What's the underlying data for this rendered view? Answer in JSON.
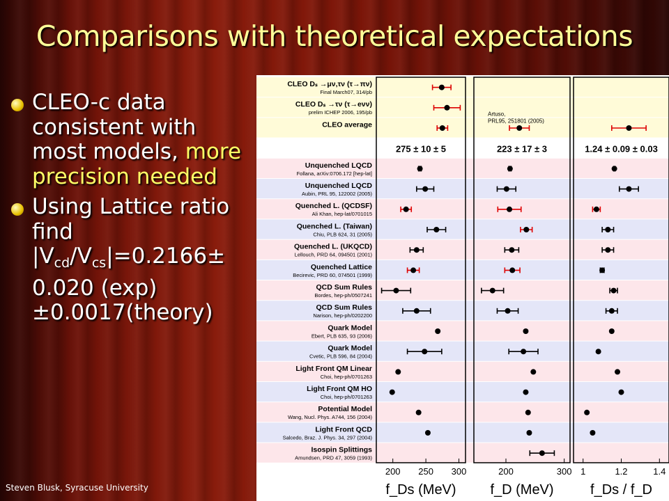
{
  "slide": {
    "title": "Comparisons with theoretical expectations",
    "footer": "Steven Blusk, Syracuse University",
    "bullets": [
      {
        "parts": [
          "CLEO-c data consistent with most models, ",
          "more precision needed"
        ]
      },
      {
        "text": "Using Lattice ratio find |V",
        "sub1": "cd",
        "mid": "/V",
        "sub2": "cs",
        "tail": "|=0.2166± 0.020 (exp) ±0.0017(theory)"
      }
    ]
  },
  "chart_data": {
    "type": "scatter",
    "rows": [
      {
        "name": "CLEO Dₛ →μν,τν (τ→πν)",
        "ref": "Final March07, 314/pb",
        "group": "cleo"
      },
      {
        "name": "CLEO Dₛ →τν (τ→eνν)",
        "ref": "prelim ICHEP 2006, 195/pb",
        "group": "cleo"
      },
      {
        "name": "CLEO average",
        "ref": "",
        "group": "cleo"
      },
      {
        "name": "",
        "ref": "",
        "group": "summary"
      },
      {
        "name": "Unquenched LQCD",
        "ref": "Follana, arXiv:0706.172 [hep-lat]",
        "group": "a"
      },
      {
        "name": "Unquenched LQCD",
        "ref": "Aubin, PRL 95, 122002 (2005)",
        "group": "b"
      },
      {
        "name": "Quenched L. (QCDSF)",
        "ref": "Ali Khan, hep-lat/0701015",
        "group": "a"
      },
      {
        "name": "Quenched L. (Taiwan)",
        "ref": "Chiu, PLB 624, 31 (2005)",
        "group": "b"
      },
      {
        "name": "Quenched L. (UKQCD)",
        "ref": "Lellouch, PRD 64, 094501 (2001)",
        "group": "a"
      },
      {
        "name": "Quenched Lattice",
        "ref": "Becirevic, PRD 60, 074501 (1999)",
        "group": "b"
      },
      {
        "name": "QCD Sum Rules",
        "ref": "Bordes, hep-ph/0507241",
        "group": "a"
      },
      {
        "name": "QCD Sum Rules",
        "ref": "Narison, hep-ph/0202200",
        "group": "b"
      },
      {
        "name": "Quark Model",
        "ref": "Ebert, PLB 635, 93 (2006)",
        "group": "a"
      },
      {
        "name": "Quark Model",
        "ref": "Cvetic, PLB 596, 84 (2004)",
        "group": "b"
      },
      {
        "name": "Light Front QM Linear",
        "ref": "Choi, hep-ph/0701263",
        "group": "a"
      },
      {
        "name": "Light Front QM HO",
        "ref": "Choi, hep-ph/0701263",
        "group": "b"
      },
      {
        "name": "Potential Model",
        "ref": "Wang, Nucl. Phys. A744, 156 (2004)",
        "group": "a"
      },
      {
        "name": "Light Front QCD",
        "ref": "Salcedo, Braz. J. Phys. 34, 297 (2004)",
        "group": "b"
      },
      {
        "name": "Isospin Splittings",
        "ref": "Amundsen, PRD 47, 3059 (1993)",
        "group": "a"
      }
    ],
    "panels": [
      {
        "xlabel": "f_Ds (MeV)",
        "xlim": [
          175,
          310
        ],
        "ticks": [
          200,
          250,
          300
        ],
        "summary": "275 ± 10 ± 5",
        "points": [
          {
            "row": 0,
            "v": 274,
            "lo": 260,
            "hi": 288,
            "red": true
          },
          {
            "row": 1,
            "v": 282,
            "lo": 262,
            "hi": 302,
            "red": true
          },
          {
            "row": 2,
            "v": 275,
            "lo": 267,
            "hi": 283,
            "red": true
          },
          {
            "row": 4,
            "v": 241,
            "lo": 239,
            "hi": 243
          },
          {
            "row": 5,
            "v": 249,
            "lo": 236,
            "hi": 262
          },
          {
            "row": 6,
            "v": 220,
            "lo": 212,
            "hi": 228,
            "red": true
          },
          {
            "row": 7,
            "v": 266,
            "lo": 252,
            "hi": 280
          },
          {
            "row": 8,
            "v": 236,
            "lo": 226,
            "hi": 246
          },
          {
            "row": 9,
            "v": 231,
            "lo": 222,
            "hi": 240,
            "red": true
          },
          {
            "row": 10,
            "v": 205,
            "lo": 183,
            "hi": 227
          },
          {
            "row": 11,
            "v": 236,
            "lo": 215,
            "hi": 257
          },
          {
            "row": 12,
            "v": 268,
            "lo": 268,
            "hi": 268
          },
          {
            "row": 13,
            "v": 248,
            "lo": 222,
            "hi": 274
          },
          {
            "row": 14,
            "v": 208,
            "lo": 208,
            "hi": 208
          },
          {
            "row": 15,
            "v": 199,
            "lo": 199,
            "hi": 199
          },
          {
            "row": 16,
            "v": 239,
            "lo": 239,
            "hi": 239
          },
          {
            "row": 17,
            "v": 253,
            "lo": 253,
            "hi": 253
          }
        ]
      },
      {
        "xlabel": "f_D (MeV)",
        "xlim": [
          145,
          310
        ],
        "ticks": [
          200,
          300
        ],
        "summary": "223 ± 17 ± 3",
        "note": "Artuso, PRL95, 251801 (2005)",
        "points": [
          {
            "row": 2,
            "v": 223,
            "lo": 206,
            "hi": 240,
            "red": true
          },
          {
            "row": 4,
            "v": 207,
            "lo": 205,
            "hi": 209
          },
          {
            "row": 5,
            "v": 201,
            "lo": 185,
            "hi": 217
          },
          {
            "row": 6,
            "v": 206,
            "lo": 186,
            "hi": 226,
            "red": true
          },
          {
            "row": 7,
            "v": 235,
            "lo": 225,
            "hi": 245,
            "red": true
          },
          {
            "row": 8,
            "v": 210,
            "lo": 198,
            "hi": 222
          },
          {
            "row": 9,
            "v": 211,
            "lo": 198,
            "hi": 224,
            "red": true
          },
          {
            "row": 10,
            "v": 177,
            "lo": 158,
            "hi": 196
          },
          {
            "row": 11,
            "v": 203,
            "lo": 185,
            "hi": 221
          },
          {
            "row": 12,
            "v": 234,
            "lo": 234,
            "hi": 234
          },
          {
            "row": 13,
            "v": 230,
            "lo": 205,
            "hi": 255
          },
          {
            "row": 14,
            "v": 247,
            "lo": 247,
            "hi": 247
          },
          {
            "row": 15,
            "v": 234,
            "lo": 234,
            "hi": 234
          },
          {
            "row": 16,
            "v": 238,
            "lo": 238,
            "hi": 238
          },
          {
            "row": 17,
            "v": 240,
            "lo": 240,
            "hi": 240
          },
          {
            "row": 18,
            "v": 262,
            "lo": 241,
            "hi": 283
          }
        ]
      },
      {
        "xlabel": "f_Ds / f_D",
        "xlim": [
          0.95,
          1.45
        ],
        "ticks": [
          1,
          1.2,
          1.4
        ],
        "summary": "1.24 ± 0.09 ± 0.03",
        "points": [
          {
            "row": 2,
            "v": 1.24,
            "lo": 1.15,
            "hi": 1.33,
            "red": true
          },
          {
            "row": 4,
            "v": 1.164,
            "lo": 1.16,
            "hi": 1.168
          },
          {
            "row": 5,
            "v": 1.24,
            "lo": 1.19,
            "hi": 1.29
          },
          {
            "row": 6,
            "v": 1.07,
            "lo": 1.05,
            "hi": 1.09,
            "red": true
          },
          {
            "row": 7,
            "v": 1.13,
            "lo": 1.1,
            "hi": 1.16
          },
          {
            "row": 8,
            "v": 1.13,
            "lo": 1.1,
            "hi": 1.16
          },
          {
            "row": 9,
            "v": 1.1,
            "lo": 1.09,
            "hi": 1.11
          },
          {
            "row": 10,
            "v": 1.16,
            "lo": 1.14,
            "hi": 1.18
          },
          {
            "row": 11,
            "v": 1.15,
            "lo": 1.12,
            "hi": 1.18
          },
          {
            "row": 12,
            "v": 1.15,
            "lo": 1.15,
            "hi": 1.15
          },
          {
            "row": 13,
            "v": 1.08,
            "lo": 1.08,
            "hi": 1.08
          },
          {
            "row": 14,
            "v": 1.18,
            "lo": 1.18,
            "hi": 1.18
          },
          {
            "row": 15,
            "v": 1.2,
            "lo": 1.2,
            "hi": 1.2
          },
          {
            "row": 16,
            "v": 1.02,
            "lo": 1.02,
            "hi": 1.02
          },
          {
            "row": 17,
            "v": 1.05,
            "lo": 1.05,
            "hi": 1.05
          }
        ]
      }
    ]
  },
  "colors": {
    "title": "#ffff99",
    "highlight": "#ffff66",
    "bar_red": "#dd0000",
    "row_cleo": "#fffbd8",
    "row_a": "#fde6ea",
    "row_b": "#e4e6f8"
  }
}
